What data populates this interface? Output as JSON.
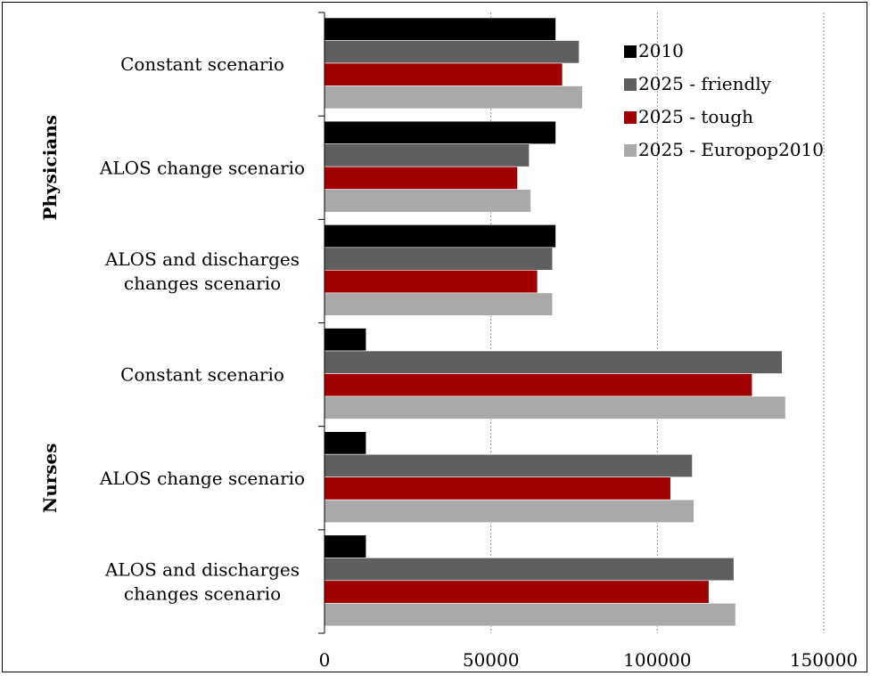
{
  "chart_data": {
    "type": "bar",
    "orientation": "horizontal",
    "title": "",
    "xlabel": "",
    "ylabel": "",
    "xlim": [
      0,
      150000
    ],
    "xticks": [
      0,
      50000,
      100000,
      150000
    ],
    "tick_labels": [
      "0",
      "50000",
      "100000",
      "150000"
    ],
    "grid": "vertical-dotted",
    "legend_position": "top-right",
    "groups": [
      {
        "label": "Physicians",
        "categories": [
          0,
          1,
          2
        ]
      },
      {
        "label": "Nurses",
        "categories": [
          3,
          4,
          5
        ]
      }
    ],
    "categories": [
      {
        "lines": [
          "Constant scenario"
        ]
      },
      {
        "lines": [
          "ALOS change scenario"
        ]
      },
      {
        "lines": [
          "ALOS and discharges",
          "changes scenario"
        ]
      },
      {
        "lines": [
          "Constant scenario"
        ]
      },
      {
        "lines": [
          "ALOS change scenario"
        ]
      },
      {
        "lines": [
          "ALOS and discharges",
          "changes scenario"
        ]
      }
    ],
    "series": [
      {
        "name": "2010",
        "color": "#000000",
        "values": [
          69500,
          69500,
          69500,
          12500,
          12500,
          12500
        ]
      },
      {
        "name": "2025 - friendly",
        "color": "#5f5f5f",
        "values": [
          76500,
          61500,
          68500,
          137500,
          110500,
          123000
        ]
      },
      {
        "name": "2025 - tough",
        "color": "#a00000",
        "values": [
          71500,
          58000,
          64000,
          128500,
          104000,
          115500
        ]
      },
      {
        "name": "2025 - Europop2010",
        "color": "#a9a9a9",
        "values": [
          77500,
          62000,
          68500,
          138500,
          111000,
          123500
        ]
      }
    ]
  }
}
